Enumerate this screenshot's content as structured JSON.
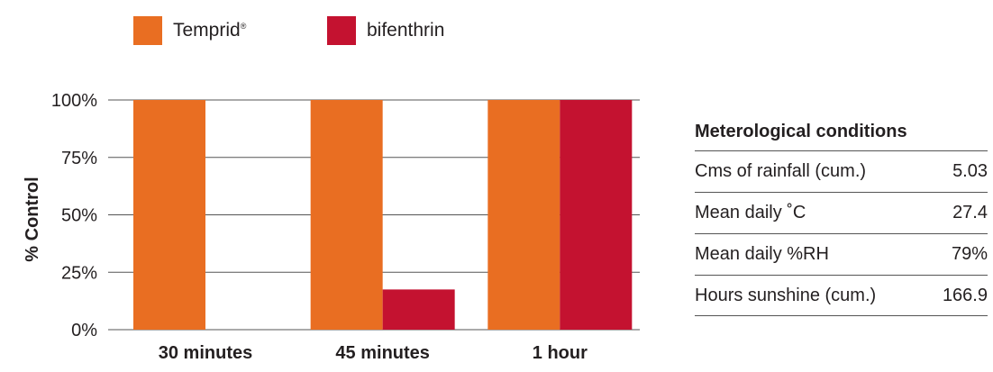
{
  "legend": {
    "items": [
      {
        "name": "Temprid",
        "mark": "®",
        "color": "#e96e22"
      },
      {
        "name": "bifenthrin",
        "mark": "",
        "color": "#c41230"
      }
    ]
  },
  "chart_data": {
    "type": "bar",
    "categories": [
      "30 minutes",
      "45 minutes",
      "1 hour"
    ],
    "series": [
      {
        "name": "Temprid",
        "color": "#e96e22",
        "values": [
          100,
          100,
          100
        ]
      },
      {
        "name": "bifenthrin",
        "color": "#c41230",
        "values": [
          0,
          17.5,
          100
        ]
      }
    ],
    "ylabel": "% Control",
    "ylim": [
      0,
      100
    ],
    "yticks": [
      "0%",
      "25%",
      "50%",
      "75%",
      "100%"
    ],
    "grid": true,
    "legend_position": "top-left"
  },
  "met_table": {
    "title": "Meterological conditions",
    "rows": [
      {
        "label": "Cms of rainfall (cum.)",
        "value": "5.03"
      },
      {
        "label": "Mean daily ˚C",
        "value": "27.4"
      },
      {
        "label": "Mean daily %RH",
        "value": "79%"
      },
      {
        "label": "Hours sunshine (cum.)",
        "value": "166.9"
      }
    ]
  }
}
